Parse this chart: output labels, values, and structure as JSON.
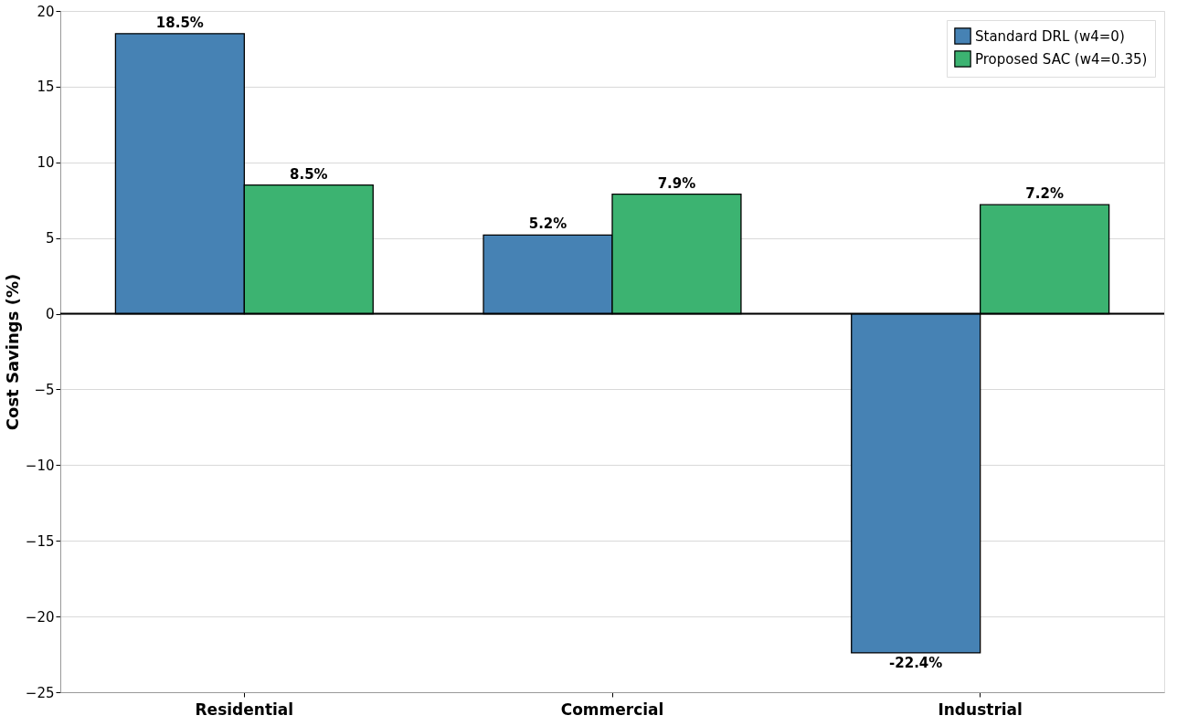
{
  "chart_data": {
    "type": "bar",
    "ylabel": "Cost Savings (%)",
    "categories": [
      "Residential",
      "Commercial",
      "Industrial"
    ],
    "series": [
      {
        "name": "Standard DRL (w4=0)",
        "color": "#4682b4",
        "values": [
          18.5,
          5.2,
          -22.4
        ],
        "value_labels": [
          "18.5%",
          "5.2%",
          "-22.4%"
        ]
      },
      {
        "name": "Proposed SAC (w4=0.35)",
        "color": "#3cb371",
        "values": [
          8.5,
          7.9,
          7.2
        ],
        "value_labels": [
          "8.5%",
          "7.9%",
          "7.2%"
        ]
      }
    ],
    "ylim": [
      -25,
      20
    ],
    "yticks": [
      -25,
      -20,
      -15,
      -10,
      -5,
      0,
      5,
      10,
      15,
      20
    ],
    "ref_lines": [
      {
        "axis": "y",
        "value": 0,
        "color": "#000000"
      }
    ],
    "grid": "y",
    "legend": "top right"
  }
}
